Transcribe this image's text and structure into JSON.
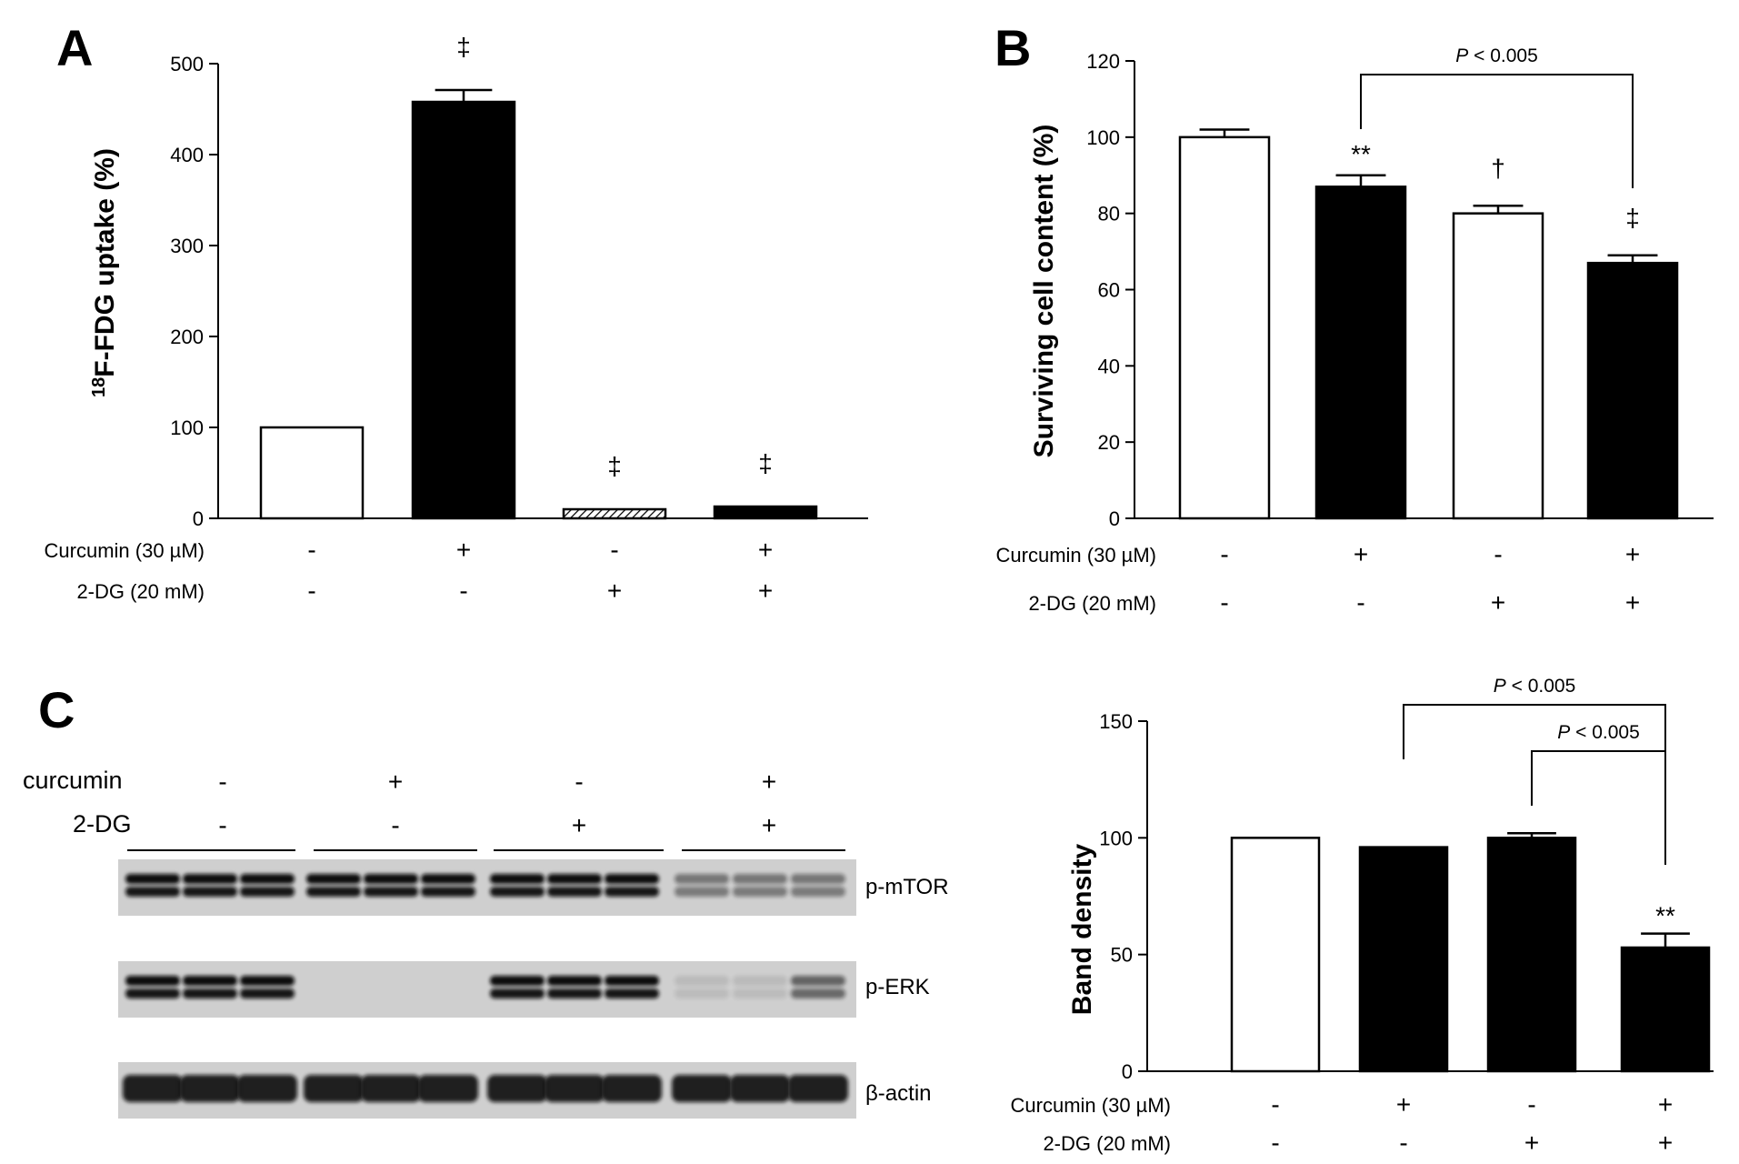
{
  "panels": {
    "a": "A",
    "b": "B",
    "c": "C"
  },
  "chart_data": [
    {
      "id": "A",
      "type": "bar",
      "ylabel_sup": "18",
      "ylabel": "F-FDG uptake (%)",
      "ylim": [
        0,
        500
      ],
      "yticks": [
        "0",
        "100",
        "200",
        "300",
        "400",
        "500"
      ],
      "values": [
        100,
        458,
        10,
        13
      ],
      "errors": [
        0,
        13,
        0,
        0
      ],
      "fills": [
        "white",
        "black",
        "hatched",
        "black"
      ],
      "marks": [
        "",
        "‡",
        "‡",
        "‡"
      ],
      "conditions": [
        {
          "label": "Curcumin (30 µM)",
          "signs": [
            "-",
            "+",
            "-",
            "+"
          ]
        },
        {
          "label": "2-DG (20 mM)",
          "signs": [
            "-",
            "-",
            "+",
            "+"
          ]
        }
      ],
      "brackets": []
    },
    {
      "id": "B",
      "type": "bar",
      "ylabel": "Surviving  cell content (%)",
      "ylim": [
        0,
        120
      ],
      "yticks": [
        "0",
        "20",
        "40",
        "60",
        "80",
        "100",
        "120"
      ],
      "values": [
        100,
        87,
        80,
        67
      ],
      "errors": [
        2,
        3,
        2,
        2
      ],
      "fills": [
        "white",
        "black",
        "white",
        "black"
      ],
      "marks": [
        "",
        "**",
        "†",
        "‡"
      ],
      "conditions": [
        {
          "label": "Curcumin (30 µM)",
          "signs": [
            "-",
            "+",
            "-",
            "+"
          ]
        },
        {
          "label": "2-DG (20 mM)",
          "signs": [
            "-",
            "-",
            "+",
            "+"
          ]
        }
      ],
      "brackets": [
        {
          "from": 1,
          "to": 3,
          "label": "P < 0.005"
        }
      ]
    },
    {
      "id": "C-right",
      "type": "bar",
      "ylabel": "Band density",
      "ylim": [
        0,
        150
      ],
      "yticks": [
        "0",
        "50",
        "100",
        "150"
      ],
      "values": [
        100,
        96,
        100,
        53
      ],
      "errors": [
        0,
        0,
        2,
        6
      ],
      "fills": [
        "white",
        "black",
        "black",
        "black"
      ],
      "marks": [
        "",
        "",
        "",
        "**"
      ],
      "conditions": [
        {
          "label": "Curcumin (30 µM)",
          "signs": [
            "-",
            "+",
            "-",
            "+"
          ]
        },
        {
          "label": "2-DG (20 mM)",
          "signs": [
            "-",
            "-",
            "+",
            "+"
          ]
        }
      ],
      "brackets": [
        {
          "from": 1,
          "to": 3,
          "label": "P < 0.005"
        },
        {
          "from": 2,
          "to": 3,
          "label": "P < 0.005"
        }
      ]
    }
  ],
  "western_blot": {
    "conditions": [
      {
        "label": "curcumin",
        "signs": [
          "-",
          "+",
          "-",
          "+"
        ]
      },
      {
        "label": "2-DG",
        "signs": [
          "-",
          "-",
          "+",
          "+"
        ]
      }
    ],
    "bands": [
      {
        "label": "p-mTOR",
        "intensity": [
          1,
          1,
          1,
          0.45
        ]
      },
      {
        "label": "p-ERK",
        "intensity": [
          1,
          0,
          1,
          0.15
        ]
      },
      {
        "label": "β-actin",
        "intensity": [
          1,
          1,
          1,
          1
        ]
      }
    ]
  }
}
